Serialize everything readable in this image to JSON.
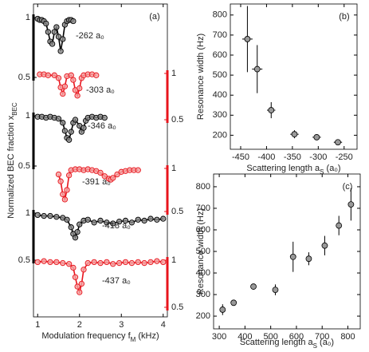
{
  "chart_data": [
    {
      "type": "line",
      "label": "(a)",
      "xlabel": {
        "text": "Modulation frequency f",
        "sub": "M",
        "after": " (kHz)"
      },
      "ylabel": {
        "text": "Normalized BEC fraction x",
        "sub": "BEC"
      },
      "xlim": [
        0.9,
        4.1
      ],
      "xticks": [
        1,
        2,
        3,
        4
      ],
      "series": [
        {
          "name": "-262 a₀",
          "color": "#000000",
          "axis": "y",
          "ylim": [
            0.5,
            1
          ],
          "yticks": [
            0.5,
            1
          ],
          "x": [
            1.0,
            1.05,
            1.1,
            1.15,
            1.2,
            1.25,
            1.3,
            1.35,
            1.4,
            1.45,
            1.5,
            1.55,
            1.6,
            1.65,
            1.7,
            1.75,
            1.8,
            1.85
          ],
          "values": [
            0.99,
            0.98,
            0.98,
            0.97,
            0.95,
            0.88,
            0.8,
            0.78,
            0.88,
            0.92,
            0.84,
            0.72,
            0.82,
            0.94,
            0.97,
            0.98,
            0.98,
            0.97
          ]
        },
        {
          "name": "-303 a₀",
          "color": "#e8141c",
          "axis": "y2",
          "ylim": [
            0.5,
            1
          ],
          "yticks": [
            0.5,
            1
          ],
          "x": [
            1.05,
            1.15,
            1.25,
            1.4,
            1.5,
            1.55,
            1.6,
            1.65,
            1.7,
            1.8,
            1.85,
            1.9,
            1.95,
            2.0,
            2.05,
            2.1,
            2.2,
            2.3,
            2.4
          ],
          "values": [
            0.99,
            0.99,
            0.98,
            0.98,
            0.95,
            0.85,
            0.78,
            0.86,
            0.97,
            0.98,
            0.93,
            0.82,
            0.76,
            0.84,
            0.95,
            0.98,
            0.99,
            0.99,
            0.98
          ]
        },
        {
          "name": "-346 a₀",
          "color": "#000000",
          "axis": "y",
          "ylim": [
            0.5,
            1
          ],
          "yticks": [
            0.5,
            1
          ],
          "x": [
            1.0,
            1.1,
            1.2,
            1.3,
            1.4,
            1.5,
            1.6,
            1.65,
            1.7,
            1.75,
            1.8,
            1.85,
            1.9,
            2.0,
            2.05,
            2.1,
            2.15,
            2.2,
            2.3,
            2.4,
            2.5,
            2.6
          ],
          "values": [
            0.99,
            0.99,
            0.98,
            0.99,
            0.98,
            0.97,
            0.93,
            0.85,
            0.78,
            0.76,
            0.84,
            0.93,
            0.96,
            0.9,
            0.84,
            0.88,
            0.95,
            0.98,
            0.99,
            0.98,
            0.99,
            0.98
          ]
        },
        {
          "name": "-391 a₀",
          "color": "#e8141c",
          "axis": "y2",
          "ylim": [
            0.5,
            1
          ],
          "yticks": [
            0.5,
            1
          ],
          "x": [
            1.5,
            1.55,
            1.6,
            1.65,
            1.7,
            1.75,
            1.8,
            1.9,
            2.0,
            2.1,
            2.2,
            2.3,
            2.4,
            2.5,
            2.6,
            2.7,
            2.75,
            2.8,
            2.9,
            3.0,
            3.1,
            3.2,
            3.3,
            3.4
          ],
          "values": [
            0.93,
            0.85,
            0.7,
            0.64,
            0.75,
            0.92,
            0.98,
            0.99,
            0.99,
            0.98,
            0.99,
            0.98,
            0.97,
            0.95,
            0.91,
            0.88,
            0.87,
            0.89,
            0.93,
            0.96,
            0.97,
            0.98,
            0.98,
            0.98
          ]
        },
        {
          "name": "-418 a₀",
          "color": "#000000",
          "axis": "y",
          "ylim": [
            0.5,
            1
          ],
          "yticks": [
            0.5,
            1
          ],
          "x": [
            1.0,
            1.15,
            1.3,
            1.45,
            1.6,
            1.7,
            1.8,
            1.85,
            1.9,
            1.95,
            2.0,
            2.1,
            2.2,
            2.35,
            2.5,
            2.65,
            2.8,
            2.95,
            3.1,
            3.25,
            3.4,
            3.55,
            3.7,
            3.85,
            4.0
          ],
          "values": [
            0.98,
            0.97,
            0.97,
            0.96,
            0.95,
            0.93,
            0.85,
            0.78,
            0.74,
            0.8,
            0.88,
            0.92,
            0.93,
            0.9,
            0.92,
            0.9,
            0.89,
            0.91,
            0.92,
            0.9,
            0.93,
            0.92,
            0.94,
            0.93,
            0.94
          ]
        },
        {
          "name": "-437 a₀",
          "color": "#e8141c",
          "axis": "y2",
          "ylim": [
            0.5,
            1
          ],
          "yticks": [
            0.5,
            1
          ],
          "x": [
            1.0,
            1.15,
            1.3,
            1.45,
            1.6,
            1.75,
            1.85,
            1.9,
            1.95,
            2.0,
            2.05,
            2.1,
            2.2,
            2.35,
            2.5,
            2.65,
            2.8,
            2.95,
            3.1,
            3.25,
            3.4,
            3.55,
            3.7,
            3.85,
            4.0
          ],
          "values": [
            0.98,
            0.99,
            0.98,
            0.98,
            0.97,
            0.96,
            0.92,
            0.82,
            0.72,
            0.66,
            0.75,
            0.9,
            0.97,
            0.98,
            0.97,
            0.98,
            0.96,
            0.97,
            0.98,
            0.97,
            0.98,
            0.97,
            0.98,
            0.99,
            0.98
          ]
        }
      ]
    },
    {
      "type": "scatter",
      "label": "(b)",
      "xlabel": {
        "text": "Scattering length a",
        "sub": "S",
        "after": " (a₀)"
      },
      "ylabel": {
        "text": "Resonance width (Hz)"
      },
      "xlim": [
        -470,
        -225
      ],
      "xticks": [
        -450,
        -400,
        -350,
        -300,
        -250
      ],
      "ylim": [
        130,
        855
      ],
      "yticks": [
        200,
        300,
        400,
        500,
        600,
        700,
        800
      ],
      "color": "#999999",
      "x": [
        -437,
        -418,
        -391,
        -346,
        -303,
        -262
      ],
      "xerrors": [
        10,
        10,
        8,
        8,
        8,
        8
      ],
      "values": [
        680,
        530,
        325,
        205,
        190,
        165
      ],
      "errors": [
        165,
        120,
        40,
        20,
        10,
        8
      ]
    },
    {
      "type": "scatter",
      "label": "(c)",
      "xlabel": {
        "text": "Scattering length a",
        "sub": "S",
        "after": " (a₀)"
      },
      "ylabel": {
        "text": "Resonance width (Hz)"
      },
      "xlim": [
        278,
        848
      ],
      "xticks": [
        300,
        400,
        500,
        600,
        700,
        800
      ],
      "ylim": [
        141,
        859
      ],
      "yticks": [
        200,
        300,
        400,
        500,
        600,
        700,
        800
      ],
      "color": "#999999",
      "x": [
        313,
        356,
        433,
        518,
        587,
        648,
        710,
        765,
        812
      ],
      "values": [
        230,
        262,
        337,
        322,
        475,
        466,
        527,
        620,
        718
      ],
      "errors": [
        25,
        10,
        10,
        25,
        70,
        30,
        45,
        45,
        75
      ]
    }
  ]
}
